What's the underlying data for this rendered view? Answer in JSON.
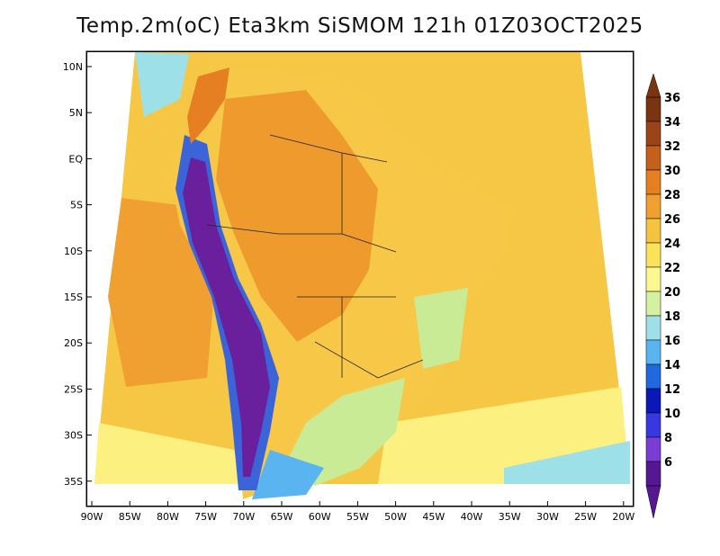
{
  "title": "Temp.2m(oC) Eta3km SiSMOM 121h 01Z03OCT2025",
  "map": {
    "lat_ticks": [
      "10N",
      "5N",
      "EQ",
      "5S",
      "10S",
      "15S",
      "20S",
      "25S",
      "30S",
      "35S"
    ],
    "lon_ticks": [
      "90W",
      "85W",
      "80W",
      "75W",
      "70W",
      "65W",
      "60W",
      "55W",
      "50W",
      "45W",
      "40W",
      "35W",
      "30W",
      "25W",
      "20W"
    ],
    "regions": [
      {
        "name": "ocean-warm",
        "color": "#f5c040"
      },
      {
        "name": "ocean-hot",
        "color": "#f0a030"
      },
      {
        "name": "coast-cool",
        "color": "#fbf080"
      },
      {
        "name": "land-warm",
        "color": "#f7c848"
      },
      {
        "name": "land-hot",
        "color": "#ee9a2c"
      },
      {
        "name": "south-cool",
        "color": "#c9eb96"
      },
      {
        "name": "andes-cold",
        "color": "#6a1f9c"
      },
      {
        "name": "andes-cool",
        "color": "#3a64d8"
      }
    ]
  },
  "colorbar": {
    "labels": [
      "36",
      "34",
      "32",
      "30",
      "28",
      "26",
      "24",
      "22",
      "20",
      "18",
      "16",
      "14",
      "12",
      "10",
      "8",
      "6"
    ],
    "colors": [
      "#7a3410",
      "#9a4418",
      "#c4601c",
      "#e57f22",
      "#f0a030",
      "#f4c440",
      "#fae25a",
      "#fcf890",
      "#d4f0a0",
      "#9ee0e8",
      "#5ab4f0",
      "#2068e0",
      "#0a18b8",
      "#3838e0",
      "#7a3cd2",
      "#561890"
    ]
  }
}
